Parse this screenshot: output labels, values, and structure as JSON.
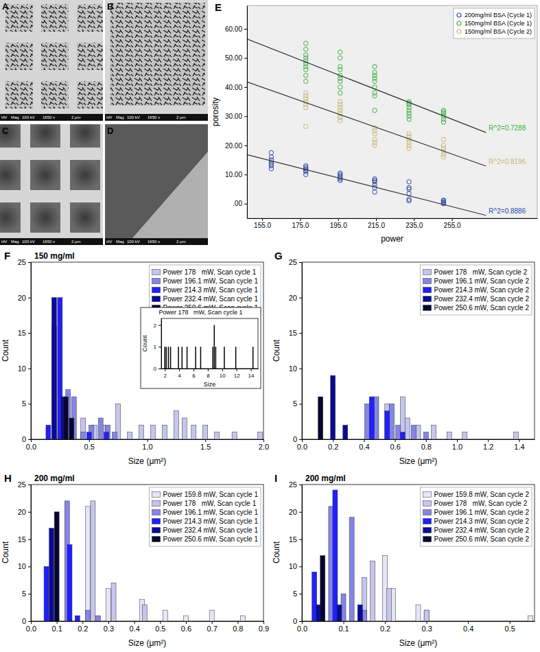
{
  "images": [
    {
      "label": "A",
      "info": [
        "HV",
        "Mag",
        "100 kV",
        "1650 x",
        "2 μm"
      ]
    },
    {
      "label": "B",
      "info": [
        "HV",
        "Mag",
        "100 kV",
        "1650 x",
        "2 μm"
      ]
    },
    {
      "label": "C",
      "info": [
        "HV",
        "Mag",
        "100 kV",
        "1650 x",
        "2 μm"
      ]
    },
    {
      "label": "D",
      "info": [
        "HV",
        "Mag",
        "100 kV",
        "1650 x",
        "2 μm"
      ]
    }
  ],
  "chart_data": [
    {
      "type": "scatter",
      "title": "E",
      "x_label": "power",
      "y_label": "porosity",
      "xlim": [
        147,
        300
      ],
      "xticks": [
        {
          "value": 155,
          "label": "155.0"
        },
        {
          "value": 175,
          "label": "175.0"
        },
        {
          "value": 195,
          "label": "195.0"
        },
        {
          "value": 215,
          "label": "215.0"
        },
        {
          "value": 235,
          "label": "235.0"
        },
        {
          "value": 255,
          "label": "255.0"
        }
      ],
      "ylim": [
        -5,
        68
      ],
      "yticks": [
        {
          "value": 0,
          "label": ".00"
        },
        {
          "value": 10,
          "label": "10.00"
        },
        {
          "value": 20,
          "label": "20.00"
        },
        {
          "value": 30,
          "label": "30.00"
        },
        {
          "value": 40,
          "label": "40.00"
        },
        {
          "value": 50,
          "label": "50.00"
        },
        {
          "value": 60,
          "label": "60.00"
        }
      ],
      "legend": "upper right",
      "series": [
        {
          "name": "200mg/ml BSA (Cycle 1)",
          "color": "#2b4aa6",
          "marker": "circle",
          "x": [
            159.8,
            159.8,
            159.8,
            159.8,
            159.8,
            159.8,
            159.8,
            178,
            178,
            178,
            178,
            178,
            178,
            196.1,
            196.1,
            196.1,
            196.1,
            196.1,
            196.1,
            214.3,
            214.3,
            214.3,
            214.3,
            214.3,
            214.3,
            232.4,
            232.4,
            232.4,
            232.4,
            232.4,
            232.4,
            250.6,
            250.6,
            250.6,
            250.6,
            250.6
          ],
          "values": [
            12,
            13,
            14,
            15,
            16,
            17.5,
            13.5,
            10,
            11,
            11.5,
            12,
            12.5,
            13,
            8,
            8.5,
            9,
            9.5,
            10,
            10.5,
            4,
            5.5,
            6.5,
            7.5,
            8,
            8.5,
            1,
            1.5,
            3.5,
            5,
            5.5,
            7.5,
            0,
            0.3,
            0.6,
            1,
            1.2
          ]
        },
        {
          "name": "150mg/ml BSA (Cycle 1)",
          "color": "#3cb043",
          "marker": "circle",
          "x": [
            178,
            178,
            178,
            178,
            178,
            178,
            178,
            178,
            178,
            178,
            196.1,
            196.1,
            196.1,
            196.1,
            196.1,
            196.1,
            196.1,
            196.1,
            196.1,
            214.3,
            214.3,
            214.3,
            214.3,
            214.3,
            214.3,
            214.3,
            214.3,
            214.3,
            232.4,
            232.4,
            232.4,
            232.4,
            232.4,
            232.4,
            232.4,
            232.4,
            250.6,
            250.6,
            250.6,
            250.6,
            250.6,
            250.6
          ],
          "values": [
            42,
            44,
            46,
            47,
            48,
            49,
            50,
            51,
            53,
            55,
            38,
            40,
            42,
            43,
            44,
            46,
            47,
            50,
            52,
            32,
            37,
            38,
            40,
            42,
            43,
            44,
            45,
            47,
            29,
            30,
            31,
            32,
            33,
            34,
            34.5,
            35,
            28,
            29,
            30,
            31,
            31.5,
            32
          ]
        },
        {
          "name": "150mg/ml BSA (Cycle 2)",
          "color": "#c9b87a",
          "marker": "circle",
          "x": [
            178,
            178,
            178,
            178,
            178,
            178,
            178,
            196.1,
            196.1,
            196.1,
            196.1,
            196.1,
            196.1,
            196.1,
            196.1,
            214.3,
            214.3,
            214.3,
            214.3,
            214.3,
            214.3,
            232.4,
            232.4,
            232.4,
            232.4,
            232.4,
            232.4,
            250.6,
            250.6,
            250.6,
            250.6,
            250.6,
            250.6
          ],
          "values": [
            26.5,
            33,
            34,
            35,
            36,
            37,
            38,
            28.5,
            29.5,
            30,
            31,
            32,
            33,
            34,
            35,
            20,
            21,
            22,
            24,
            25,
            26,
            19,
            20,
            21,
            22,
            23,
            24,
            16,
            17,
            18,
            19,
            20,
            22
          ]
        },
        {
          "type": "line",
          "color": "#333333",
          "line_style": "solid",
          "label": "R^2=0.8886",
          "x": [
            147,
            273
          ],
          "values": [
            16.8,
            -4
          ]
        },
        {
          "type": "line",
          "color": "#333333",
          "line_style": "solid",
          "label": "R^2=0.7288",
          "x": [
            147,
            273
          ],
          "values": [
            56.5,
            24.4
          ]
        },
        {
          "type": "line",
          "color": "#333333",
          "line_style": "solid",
          "label": "R^2=0.8196",
          "x": [
            147,
            273
          ],
          "values": [
            41.8,
            12.9
          ]
        }
      ]
    },
    {
      "type": "bar",
      "title": "F",
      "subtitle": "150 mg/ml",
      "x_label": "Size (μm²)",
      "y_label": "Count",
      "xlim": [
        0,
        2
      ],
      "xticks": [
        {
          "value": 0,
          "label": "0.0"
        },
        0.5,
        {
          "value": 1,
          "label": "1.0"
        },
        1.5,
        {
          "value": 2,
          "label": "2.0"
        }
      ],
      "ylim": [
        0,
        25
      ],
      "yticks": [
        0,
        5,
        10,
        15,
        20,
        25
      ],
      "legend": "upper right",
      "series": [
        {
          "name": "Power 178   mW, Scan cycle 1",
          "color": "#c5c5ee",
          "x": [
            0.45,
            0.55,
            0.62,
            0.75,
            0.85,
            0.95,
            1.05,
            1.15,
            1.25,
            1.32,
            1.4,
            1.5,
            1.6,
            1.75,
            1.97
          ],
          "values": [
            3,
            2,
            2,
            5,
            1,
            2,
            2,
            2,
            4,
            3,
            2,
            2,
            1,
            1,
            1
          ]
        },
        {
          "name": "Power 196.1 mW, Scan cycle 1",
          "color": "#8585e6",
          "x": [
            0.2,
            0.32,
            0.37,
            0.45,
            0.52,
            0.6,
            0.66,
            0.72
          ],
          "values": [
            16,
            7,
            6,
            1,
            2,
            3,
            2,
            1
          ]
        },
        {
          "name": "Power 214.3 mW, Scan cycle 1",
          "color": "#1f1fff",
          "x": [
            0.15,
            0.25,
            0.5,
            0.65
          ],
          "values": [
            2,
            20,
            1,
            1
          ]
        },
        {
          "name": "Power 232.4 mW, Scan cycle 1",
          "color": "#0a0a96",
          "x": [
            0.2,
            0.28
          ],
          "values": [
            20,
            6
          ]
        },
        {
          "name": "Power 250.6 mW, Scan cycle 1",
          "color": "#050530",
          "x": [
            0.3,
            0.35
          ],
          "values": [
            6,
            3
          ]
        }
      ]
    },
    {
      "type": "bar",
      "title": "Power 178   mW, Scan cycle 1",
      "x_label": "Size",
      "y_label": "Count",
      "xlim": [
        1.5,
        15
      ],
      "xticks": [
        2,
        4,
        6,
        8,
        10,
        12,
        14
      ],
      "ylim": [
        0,
        2.3
      ],
      "yticks": [
        0,
        1,
        2
      ],
      "series": [
        {
          "color": "#000000",
          "x": [
            2.0,
            2.2,
            2.5,
            2.8,
            3.9,
            4.4,
            5.1,
            6.3,
            7.0,
            8.7,
            8.9,
            9.1,
            10.3,
            11.9,
            14.3
          ],
          "values": [
            1,
            1,
            1,
            1,
            1,
            1,
            1,
            1,
            1,
            1,
            2,
            1,
            1,
            1,
            1
          ]
        }
      ]
    },
    {
      "type": "bar",
      "title": "G",
      "x_label": "Size (μm²)",
      "y_label": "Count",
      "xlim": [
        0,
        1.5
      ],
      "xticks": [
        {
          "value": 0,
          "label": "0.0"
        },
        0.2,
        0.4,
        0.6,
        0.8,
        {
          "value": 1,
          "label": "1.0"
        },
        1.2,
        1.4
      ],
      "ylim": [
        0,
        25
      ],
      "yticks": [
        0,
        5,
        10,
        15,
        20,
        25
      ],
      "legend": "upper right",
      "series": [
        {
          "name": "Power 178   mW, Scan cycle 2",
          "color": "#c5c5ee",
          "x": [
            0.55,
            0.65,
            0.68,
            0.75,
            0.85,
            0.95,
            1.05,
            1.38
          ],
          "values": [
            5,
            6,
            3,
            2,
            2,
            1,
            1,
            1
          ]
        },
        {
          "name": "Power 196.1 mW, Scan cycle 2",
          "color": "#8585e6",
          "x": [
            0.42,
            0.48,
            0.58,
            0.62,
            0.72,
            0.8
          ],
          "values": [
            5,
            6,
            5,
            2,
            2,
            1
          ]
        },
        {
          "name": "Power 214.3 mW, Scan cycle 2",
          "color": "#1f1fff",
          "x": [
            0.45,
            0.55,
            0.65
          ],
          "values": [
            6,
            4,
            1
          ]
        },
        {
          "name": "Power 232.4 mW, Scan cycle 2",
          "color": "#0a0a96",
          "x": [
            0.2,
            0.28
          ],
          "values": [
            9,
            2
          ]
        },
        {
          "name": "Power 250.6 mW, Scan cycle 2",
          "color": "#050530",
          "x": [
            0.12
          ],
          "values": [
            6
          ]
        }
      ]
    },
    {
      "type": "bar",
      "title": "H",
      "subtitle": "200 mg/ml",
      "x_label": "Size (μm²)",
      "y_label": "Count",
      "xlim": [
        0,
        0.9
      ],
      "xticks": [
        {
          "value": 0,
          "label": "0.0"
        },
        0.1,
        0.2,
        0.3,
        0.4,
        0.5,
        0.6,
        0.7,
        0.8,
        0.9
      ],
      "ylim": [
        0,
        25
      ],
      "yticks": [
        0,
        5,
        10,
        15,
        20,
        25
      ],
      "legend": "upper right",
      "series": [
        {
          "name": "Power 159.8 mW, Scan cycle 1",
          "color": "#e6e6f7",
          "x": [
            0.22,
            0.3,
            0.43,
            0.52,
            0.6,
            0.7,
            0.82
          ],
          "values": [
            21,
            6,
            4,
            2,
            1,
            2,
            1
          ]
        },
        {
          "name": "Power 178   mW, Scan cycle 1",
          "color": "#c5c5ee",
          "x": [
            0.24,
            0.32,
            0.44
          ],
          "values": [
            22,
            7,
            3
          ]
        },
        {
          "name": "Power 196.1 mW, Scan cycle 1",
          "color": "#8585e6",
          "x": [
            0.14,
            0.22,
            0.26
          ],
          "values": [
            22,
            2,
            1
          ]
        },
        {
          "name": "Power 214.3 mW, Scan cycle 1",
          "color": "#1f1fff",
          "x": [
            0.06,
            0.15,
            0.18
          ],
          "values": [
            10,
            14,
            1
          ]
        },
        {
          "name": "Power 232.4 mW, Scan cycle 1",
          "color": "#0a0a96",
          "x": [
            0.08
          ],
          "values": [
            17
          ]
        },
        {
          "name": "Power 250.6 mW, Scan cycle 1",
          "color": "#050530",
          "x": [
            0.1
          ],
          "values": [
            20
          ]
        }
      ]
    },
    {
      "type": "bar",
      "title": "I",
      "subtitle": "200 mg/ml",
      "x_label": "Size (μm²)",
      "y_label": "Count",
      "xlim": [
        0,
        0.56
      ],
      "xticks": [
        {
          "value": 0,
          "label": "0.0"
        },
        0.1,
        0.2,
        0.3,
        0.4,
        0.5
      ],
      "ylim": [
        0,
        25
      ],
      "yticks": [
        0,
        5,
        10,
        15,
        20,
        25
      ],
      "legend": "upper right",
      "series": [
        {
          "name": "Power 159.8 mW, Scan cycle 2",
          "color": "#e6e6f7",
          "x": [
            0.2,
            0.22,
            0.28,
            0.3,
            0.55
          ],
          "values": [
            12,
            6,
            3,
            2,
            1
          ]
        },
        {
          "name": "Power 178   mW, Scan cycle 2",
          "color": "#c5c5ee",
          "x": [
            0.15,
            0.17,
            0.21,
            0.3
          ],
          "values": [
            8,
            11,
            6,
            2
          ]
        },
        {
          "name": "Power 196.1 mW, Scan cycle 2",
          "color": "#8585e6",
          "x": [
            0.07,
            0.1,
            0.12,
            0.15
          ],
          "values": [
            21,
            5,
            19,
            2
          ]
        },
        {
          "name": "Power 214.3 mW, Scan cycle 2",
          "color": "#1f1fff",
          "x": [
            0.03,
            0.08,
            0.14
          ],
          "values": [
            9,
            24,
            2
          ]
        },
        {
          "name": "Power 232.4 mW, Scan cycle 2",
          "color": "#0a0a96",
          "x": [
            0.04,
            0.09,
            0.14
          ],
          "values": [
            3,
            3,
            3
          ]
        },
        {
          "name": "Power 250.6 mW, Scan cycle 2",
          "color": "#050530",
          "x": [
            0.05
          ],
          "values": [
            12
          ]
        }
      ]
    }
  ]
}
